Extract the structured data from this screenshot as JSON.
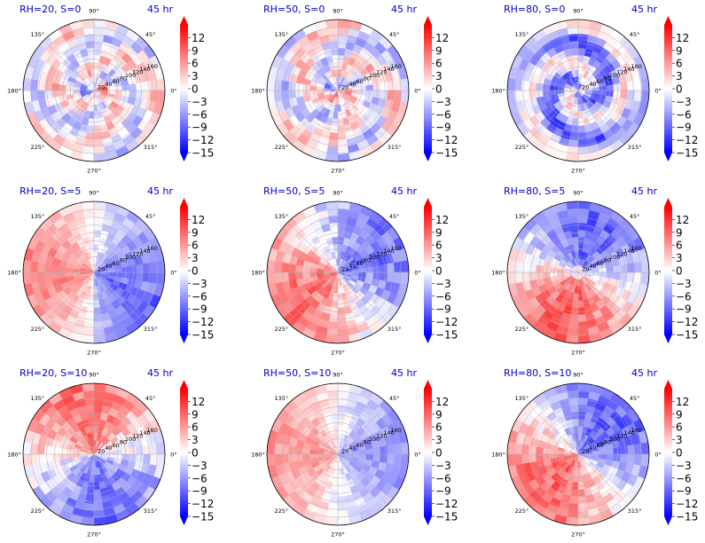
{
  "chart_data": {
    "type": "heatmap",
    "projection": "polar",
    "time_label": "45 hr",
    "angle_tick_labels": [
      "0°",
      "45°",
      "90°",
      "135°",
      "180°",
      "225°",
      "270°",
      "315°"
    ],
    "radial_tick_labels": [
      "20",
      "40",
      "60",
      "80",
      "100",
      "120",
      "140",
      "160"
    ],
    "rlim": [
      0,
      180
    ],
    "grid": true,
    "colorbar": {
      "colormap": "bwr",
      "vmin": -15,
      "vmax": 15,
      "extend": "both",
      "tick_labels": [
        "12",
        "9",
        "6",
        "3",
        "0",
        "−3",
        "−6",
        "−9",
        "−12",
        "−15"
      ]
    },
    "panels": [
      {
        "title": "RH=20, S=0",
        "pattern": "patchy-weak"
      },
      {
        "title": "RH=50, S=0",
        "pattern": "patchy-weak"
      },
      {
        "title": "RH=80, S=0",
        "pattern": "spiral-negative"
      },
      {
        "title": "RH=20, S=5",
        "pattern": "positive-west"
      },
      {
        "title": "RH=50, S=5",
        "pattern": "positive-southwest"
      },
      {
        "title": "RH=80, S=5",
        "pattern": "dipole-north-south"
      },
      {
        "title": "RH=20, S=10",
        "pattern": "dipole-north-south-inverted"
      },
      {
        "title": "RH=50, S=10",
        "pattern": "positive-west-negative-east"
      },
      {
        "title": "RH=80, S=10",
        "pattern": "dipole-northeast-southwest"
      }
    ]
  }
}
